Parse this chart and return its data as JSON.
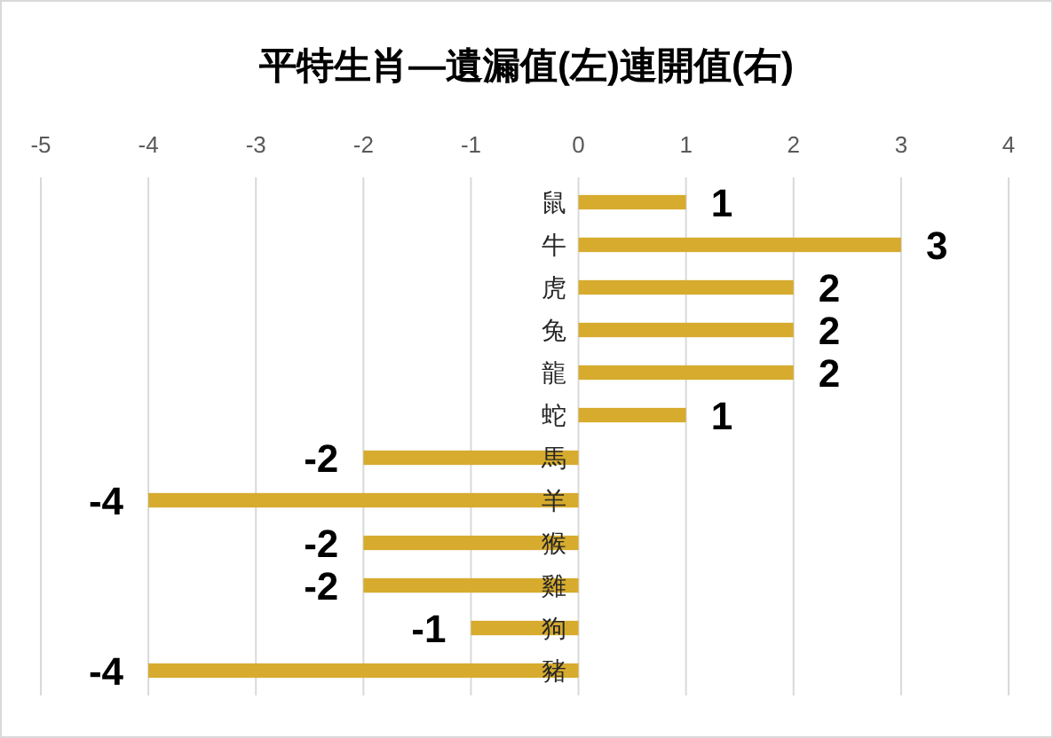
{
  "chart_data": {
    "type": "bar",
    "orientation": "horizontal",
    "title": "平特生肖—遺漏值(左)連開值(右)",
    "categories": [
      "鼠",
      "牛",
      "虎",
      "兔",
      "龍",
      "蛇",
      "馬",
      "羊",
      "猴",
      "雞",
      "狗",
      "豬"
    ],
    "values": [
      1,
      3,
      2,
      2,
      2,
      1,
      -2,
      -4,
      -2,
      -2,
      -1,
      -4
    ],
    "color": "#d6ab2e",
    "xlim": [
      -5,
      4
    ],
    "xticks": [
      -5,
      -4,
      -3,
      -2,
      -1,
      0,
      1,
      2,
      3,
      4
    ],
    "grid": "x",
    "data_labels": true
  }
}
